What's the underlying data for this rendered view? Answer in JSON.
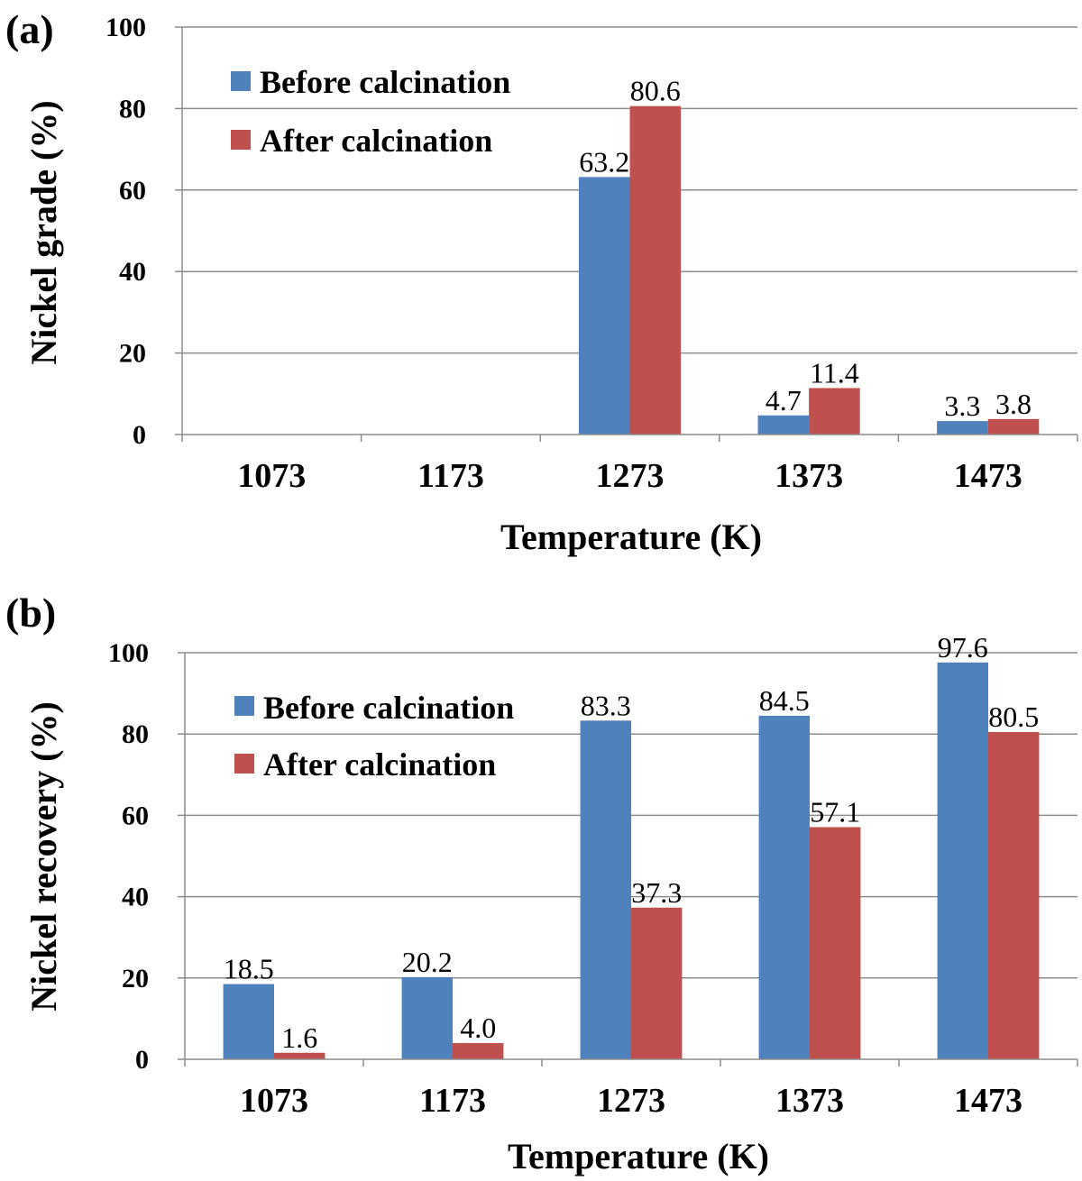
{
  "chart_data": [
    {
      "panel_label": "(a)",
      "type": "bar",
      "categories": [
        "1073",
        "1173",
        "1273",
        "1373",
        "1473"
      ],
      "series": [
        {
          "name": "Before calcination",
          "color": "#4F81BD",
          "values": [
            null,
            null,
            63.2,
            4.7,
            3.3
          ],
          "labels": [
            "",
            "",
            "63.2",
            "4.7",
            "3.3"
          ]
        },
        {
          "name": "After calcination",
          "color": "#C0504D",
          "values": [
            null,
            null,
            80.6,
            11.4,
            3.8
          ],
          "labels": [
            "",
            "",
            "80.6",
            "11.4",
            "3.8"
          ]
        }
      ],
      "xlabel": "Temperature (K)",
      "ylabel": "Nickel grade (%)",
      "ylim": [
        0,
        100
      ],
      "yticks": [
        "0",
        "20",
        "40",
        "60",
        "80",
        "100"
      ],
      "grid": true,
      "legend": "top-left"
    },
    {
      "panel_label": "(b)",
      "type": "bar",
      "categories": [
        "1073",
        "1173",
        "1273",
        "1373",
        "1473"
      ],
      "series": [
        {
          "name": "Before calcination",
          "color": "#4F81BD",
          "values": [
            18.5,
            20.2,
            83.3,
            84.5,
            97.6
          ],
          "labels": [
            "18.5",
            "20.2",
            "83.3",
            "84.5",
            "97.6"
          ]
        },
        {
          "name": "After calcination",
          "color": "#C0504D",
          "values": [
            1.6,
            4.0,
            37.3,
            57.1,
            80.5
          ],
          "labels": [
            "1.6",
            "4.0",
            "37.3",
            "57.1",
            "80.5"
          ]
        }
      ],
      "xlabel": "Temperature (K)",
      "ylabel": "Nickel recovery (%)",
      "ylim": [
        0,
        100
      ],
      "yticks": [
        "0",
        "20",
        "40",
        "60",
        "80",
        "100"
      ],
      "grid": true,
      "legend": "top-left"
    }
  ]
}
